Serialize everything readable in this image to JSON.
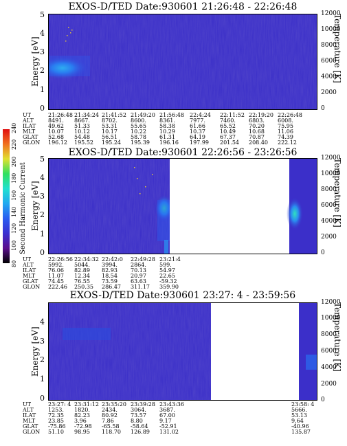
{
  "chart_data": [
    {
      "type": "heatmap",
      "title": "EXOS-D/TED   Date:930601  21:26:48 - 22:26:48",
      "ylabel": "Energy [eV]",
      "ylabel_right": "Temperature [K]",
      "ylim": [
        0,
        5
      ],
      "ylim_right": [
        0,
        12000
      ],
      "yticks": [
        "0",
        "1",
        "2",
        "3",
        "4",
        "5"
      ],
      "yticks_right": [
        "0",
        "2000",
        "4000",
        "6000",
        "8000",
        "10000",
        "12000"
      ],
      "rows": {
        "UT": [
          "21:26:48",
          "21:34:24",
          "21:41:52",
          "21:49:20",
          "21:56:48",
          "22:4:24",
          "22:11:52",
          "22:19:20",
          "22:26:48"
        ],
        "ALT": [
          "8491.",
          "8667.",
          "8702.",
          "8600.",
          "8361.",
          "7977.",
          "7460.",
          "6803.",
          "6008."
        ],
        "ILAT": [
          "49.62",
          "51.33",
          "53.31",
          "55.65",
          "58.38",
          "61.66",
          "65.52",
          "70.20",
          "75.95"
        ],
        "MLT": [
          "10.07",
          "10.12",
          "10.17",
          "10.22",
          "10.29",
          "10.37",
          "10.49",
          "10.68",
          "11.06"
        ],
        "GLAT": [
          "52.68",
          "54.48",
          "56.51",
          "58.78",
          "61.31",
          "64.19",
          "67.37",
          "70.87",
          "74.39"
        ],
        "GLON": [
          "196.12",
          "195.52",
          "195.24",
          "195.39",
          "196.16",
          "197.99",
          "201.54",
          "208.40",
          "222.12"
        ]
      }
    },
    {
      "type": "heatmap",
      "title": "EXOS-D/TED   Date:930601  22:26:56 - 23:26:56",
      "ylabel": "Energy [eV]",
      "ylabel_right": "Temperature [K]",
      "ylim": [
        0,
        5
      ],
      "ylim_right": [
        0,
        12000
      ],
      "yticks": [
        "0",
        "1",
        "2",
        "3",
        "4",
        "5"
      ],
      "yticks_right": [
        "0",
        "2000",
        "4000",
        "6000",
        "8000",
        "10000",
        "12000"
      ],
      "rows": {
        "UT": [
          "22:26:56",
          "22:34:32",
          "22:42:0",
          "22:49:28",
          "23:21:4"
        ],
        "ALT": [
          "5992.",
          "5044.",
          "3994.",
          "2864.",
          "599."
        ],
        "ILAT": [
          "76.06",
          "82.89",
          "82.93",
          "70.13",
          "54.97"
        ],
        "MLT": [
          "11.07",
          "12.34",
          "18.54",
          "20.97",
          "22.65"
        ],
        "GLAT": [
          "74.45",
          "76.55",
          "73.59",
          "63.63",
          "-59.32"
        ],
        "GLON": [
          "222.46",
          "250.35",
          "286.47",
          "311.17",
          "359.90"
        ]
      }
    },
    {
      "type": "heatmap",
      "title": "EXOS-D/TED   Date:930601  23:27: 4 - 23:59:56",
      "ylabel": "Energy [eV]",
      "ylabel_right": "Temperature [K]",
      "ylim": [
        0,
        5
      ],
      "ylim_right": [
        0,
        12000
      ],
      "yticks": [
        "0",
        "1",
        "2",
        "3",
        "4"
      ],
      "yticks_right": [
        "0",
        "2000",
        "4000",
        "6000",
        "8000",
        "10000",
        "12000"
      ],
      "rows": {
        "UT": [
          "23:27: 4",
          "23:31:12",
          "23:35:20",
          "23:39:28",
          "23:43:36",
          "23:58: 4"
        ],
        "ALT": [
          "1253.",
          "1820.",
          "2434.",
          "3064.",
          "3687.",
          "5666."
        ],
        "ILAT": [
          "72.35",
          "82.23",
          "80.92",
          "73.57",
          "67.00",
          "53.13"
        ],
        "MLT": [
          "23.85",
          "3.96",
          "7.86",
          "8.80",
          "9.17",
          "9.64"
        ],
        "GLAT": [
          "-75.86",
          "-72.98",
          "-65.58",
          "-58.64",
          "-52.91",
          "-40.96"
        ],
        "GLON": [
          "51.10",
          "98.95",
          "118.70",
          "126.89",
          "131.02",
          "135.87"
        ]
      }
    }
  ],
  "row_labels": [
    "UT",
    "ALT",
    "ILAT",
    "MLT",
    "GLAT",
    "GLON"
  ],
  "colorbar": {
    "label": "Second Harmonic Current",
    "ticks": [
      "80",
      "100",
      "120",
      "140",
      "160",
      "180",
      "200",
      "220",
      "240"
    ],
    "colors": [
      "#000000",
      "#5a0e8c",
      "#3a2fd0",
      "#2a5cf0",
      "#20a8f0",
      "#20e0d0",
      "#30e060",
      "#e0e030",
      "#f07020",
      "#e01010"
    ]
  },
  "colors": {
    "background": "#3b2fc9",
    "low": "#2b1f9f",
    "mid": "#2a6cf0",
    "high": "#30d8f0"
  }
}
